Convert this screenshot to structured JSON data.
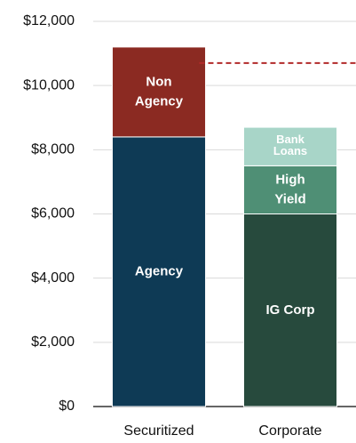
{
  "chart_data": {
    "type": "stacked_bar",
    "categories": [
      "Securitized",
      "Corporate"
    ],
    "series": [
      {
        "name": "Agency",
        "color": "#0e3a55",
        "values": [
          8400,
          null
        ]
      },
      {
        "name": "Non\nAgency",
        "color": "#8b2a22",
        "values": [
          2800,
          null
        ]
      },
      {
        "name": "IG Corp",
        "color": "#274a3d",
        "values": [
          null,
          6000
        ]
      },
      {
        "name": "High\nYield",
        "color": "#4f8f75",
        "values": [
          null,
          1500
        ]
      },
      {
        "name": "Bank\nLoans",
        "color": "#a8d5c8",
        "values": [
          null,
          1200
        ]
      }
    ],
    "ylim": [
      0,
      12000
    ],
    "yticks": [
      {
        "value": 0,
        "label": "$0"
      },
      {
        "value": 2000,
        "label": "$2,000"
      },
      {
        "value": 4000,
        "label": "$4,000"
      },
      {
        "value": 6000,
        "label": "$6,000"
      },
      {
        "value": 8000,
        "label": "$8,000"
      },
      {
        "value": 10000,
        "label": "$10,000"
      },
      {
        "value": 12000,
        "label": "$12,000"
      }
    ],
    "grid": true,
    "reference_line": {
      "value": 10700,
      "color": "#b22a2a"
    }
  }
}
